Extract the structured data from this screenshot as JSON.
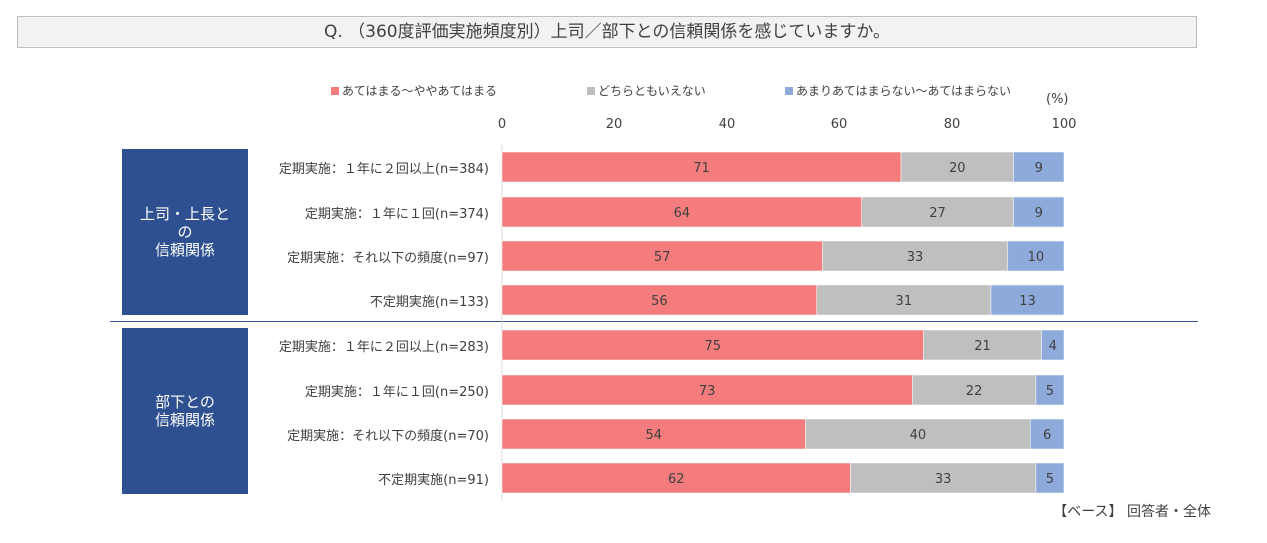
{
  "question": "Q. （360度評価実施頻度別）上司／部下との信頼関係を感じていますか。",
  "unit": "(%)",
  "base_note": "【ベース】 回答者・全体",
  "colors": {
    "agree": "#f47c7c",
    "neutral": "#bfbfbf",
    "disagree": "#8eaadb",
    "group_box": "#2e5090"
  },
  "groups": [
    {
      "label": "上司・上長と\nの\n信頼関係"
    },
    {
      "label": "部下との\n信頼関係"
    }
  ],
  "chart_data": {
    "type": "bar",
    "orientation": "horizontal",
    "stacked": true,
    "xlim": [
      0,
      100
    ],
    "ticks": [
      "0",
      "20",
      "40",
      "60",
      "80",
      "100"
    ],
    "legend_position": "top",
    "categories": [
      "定期実施：１年に２回以上(n=384)",
      "定期実施：１年に１回(n=374)",
      "定期実施：それ以下の頻度(n=97)",
      "不定期実施(n=133)",
      "定期実施：１年に２回以上(n=283)",
      "定期実施：１年に１回(n=250)",
      "定期実施：それ以下の頻度(n=70)",
      "不定期実施(n=91)"
    ],
    "series": [
      {
        "name": "あてはまる～ややあてはまる",
        "values": [
          71,
          64,
          57,
          56,
          75,
          73,
          54,
          62
        ]
      },
      {
        "name": "どちらともいえない",
        "values": [
          20,
          27,
          33,
          31,
          21,
          22,
          40,
          33
        ]
      },
      {
        "name": "あまりあてはまらない～あてはまらない",
        "values": [
          9,
          9,
          10,
          13,
          4,
          5,
          6,
          5
        ]
      }
    ]
  }
}
